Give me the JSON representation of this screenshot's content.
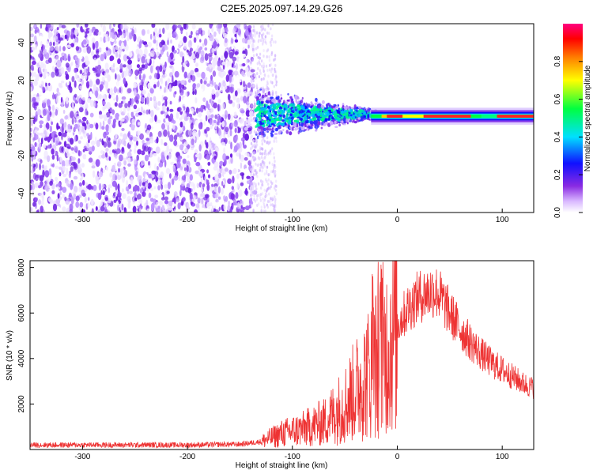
{
  "title": "C2E5.2025.097.14.29.G26",
  "chart_data": [
    {
      "type": "heatmap",
      "xlabel": "Height of straight line (km)",
      "ylabel": "Frequency (Hz)",
      "xlim": [
        -350,
        130
      ],
      "ylim": [
        -50,
        50
      ],
      "x_ticks": [
        "-300",
        "-200",
        "-100",
        "0",
        "100"
      ],
      "y_ticks": [
        "-40",
        "-20",
        "0",
        "20",
        "40"
      ],
      "colorbar": {
        "label": "Normalized spectral amplitude",
        "range": [
          0,
          1
        ],
        "ticks": [
          "0.0",
          "0.2",
          "0.4",
          "0.6",
          "0.8"
        ],
        "colormap": [
          "#ffffff",
          "#8a2be2",
          "#0000ff",
          "#00ffff",
          "#00ff00",
          "#ffff00",
          "#ff8000",
          "#ff0000",
          "#ff0080"
        ]
      }
    },
    {
      "type": "line",
      "xlabel": "Height of straight line (km)",
      "ylabel": "SNR (10 * v/v)",
      "xlim": [
        -350,
        130
      ],
      "ylim": [
        0,
        8300
      ],
      "x_ticks": [
        "-300",
        "-200",
        "-100",
        "0",
        "100"
      ],
      "y_ticks": [
        "2000",
        "4000",
        "6000",
        "8000"
      ],
      "line_color": "#ee3333",
      "x": [
        -350,
        -300,
        -250,
        -200,
        -150,
        -130,
        -110,
        -90,
        -70,
        -50,
        -40,
        -30,
        -20,
        -15,
        -10,
        0,
        10,
        20,
        30,
        35,
        40,
        50,
        60,
        70,
        80,
        90,
        100,
        110,
        120,
        130
      ],
      "y": [
        200,
        200,
        200,
        200,
        230,
        350,
        700,
        900,
        1200,
        2000,
        2600,
        3200,
        3800,
        4200,
        4500,
        5500,
        6200,
        6700,
        6900,
        7000,
        6800,
        6000,
        5300,
        4700,
        4200,
        3800,
        3500,
        3200,
        2900,
        2700
      ]
    }
  ]
}
